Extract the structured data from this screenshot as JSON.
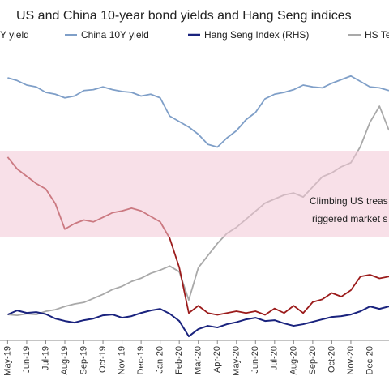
{
  "chart_data": {
    "type": "line",
    "title": "US and China 10-year bond yields and Hang Seng indices",
    "x": [
      0,
      0.5,
      1,
      1.5,
      2,
      2.5,
      3,
      3.5,
      4,
      4.5,
      5,
      5.5,
      6,
      6.5,
      7,
      7.5,
      8,
      8.5,
      9,
      9.5,
      10,
      10.5,
      11,
      11.5,
      12,
      12.5,
      13,
      13.5,
      14,
      14.5,
      15,
      15.5,
      16,
      16.5,
      17,
      17.5,
      18,
      18.5,
      19,
      19.5,
      20
    ],
    "xlim": [
      -0.4,
      20
    ],
    "xticks": [
      {
        "value": 0,
        "label": "May-19"
      },
      {
        "value": 1,
        "label": "Jun-19"
      },
      {
        "value": 2,
        "label": "Jul-19"
      },
      {
        "value": 3,
        "label": "Aug-19"
      },
      {
        "value": 4,
        "label": "Sep-19"
      },
      {
        "value": 5,
        "label": "Oct-19"
      },
      {
        "value": 6,
        "label": "Nov-19"
      },
      {
        "value": 7,
        "label": "Dec-19"
      },
      {
        "value": 8,
        "label": "Jan-20"
      },
      {
        "value": 9,
        "label": "Feb-20"
      },
      {
        "value": 10,
        "label": "Mar-20"
      },
      {
        "value": 11,
        "label": "Apr-20"
      },
      {
        "value": 12,
        "label": "May-20"
      },
      {
        "value": 13,
        "label": "Jun-20"
      },
      {
        "value": 14,
        "label": "Jul-20"
      },
      {
        "value": 15,
        "label": "Aug-20"
      },
      {
        "value": 16,
        "label": "Sep-20"
      },
      {
        "value": 17,
        "label": "Oct-20"
      },
      {
        "value": 18,
        "label": "Nov-20"
      },
      {
        "value": 19,
        "label": "Dec-20"
      }
    ],
    "ylim": [
      0.4,
      3.5
    ],
    "y2lim": [
      20000,
      90000
    ],
    "annotations": [
      "Climbing US treas",
      "riggered market s"
    ],
    "series": [
      {
        "name": "Y yield",
        "color": "#9b1b1b",
        "values": [
          2.41,
          2.28,
          2.2,
          2.12,
          2.06,
          1.9,
          1.62,
          1.68,
          1.72,
          1.7,
          1.75,
          1.8,
          1.82,
          1.85,
          1.82,
          1.76,
          1.7,
          1.52,
          1.2,
          0.7,
          0.78,
          0.7,
          0.68,
          0.7,
          0.72,
          0.7,
          0.72,
          0.68,
          0.75,
          0.7,
          0.78,
          0.7,
          0.82,
          0.85,
          0.92,
          0.88,
          0.95,
          1.1,
          1.12,
          1.08,
          1.1
        ]
      },
      {
        "name": "China 10Y yield",
        "color": "#7f9fc8",
        "values": [
          3.28,
          3.25,
          3.2,
          3.18,
          3.12,
          3.1,
          3.06,
          3.08,
          3.14,
          3.15,
          3.18,
          3.15,
          3.13,
          3.12,
          3.08,
          3.1,
          3.06,
          2.86,
          2.8,
          2.74,
          2.66,
          2.55,
          2.52,
          2.62,
          2.7,
          2.82,
          2.9,
          3.05,
          3.1,
          3.12,
          3.15,
          3.2,
          3.18,
          3.17,
          3.22,
          3.26,
          3.3,
          3.24,
          3.18,
          3.17,
          3.14
        ]
      },
      {
        "name": "Hang Seng Index (RHS)",
        "color": "#1a237e",
        "axis": "y2",
        "values": [
          26400,
          27400,
          26800,
          27000,
          26500,
          25400,
          24800,
          24400,
          25000,
          25400,
          26200,
          26400,
          25600,
          26000,
          26800,
          27400,
          27800,
          26600,
          24800,
          21000,
          22800,
          23600,
          23200,
          24000,
          24500,
          25200,
          25600,
          24800,
          25000,
          24200,
          23600,
          24000,
          24600,
          25200,
          25800,
          26000,
          26400,
          27200,
          28400,
          27800,
          28400
        ]
      },
      {
        "name": "HS Te",
        "color": "#a9a9a9",
        "axis": "y2",
        "values": [
          26400,
          26200,
          26600,
          26400,
          27200,
          27600,
          28400,
          29000,
          29400,
          30400,
          31400,
          32600,
          33400,
          34600,
          35400,
          36600,
          37400,
          38400,
          37000,
          30000,
          38000,
          41000,
          44000,
          46500,
          48000,
          50000,
          52000,
          54000,
          55000,
          56000,
          56500,
          55500,
          58000,
          60500,
          61500,
          63000,
          64000,
          68000,
          74000,
          78000,
          72000
        ]
      }
    ]
  }
}
